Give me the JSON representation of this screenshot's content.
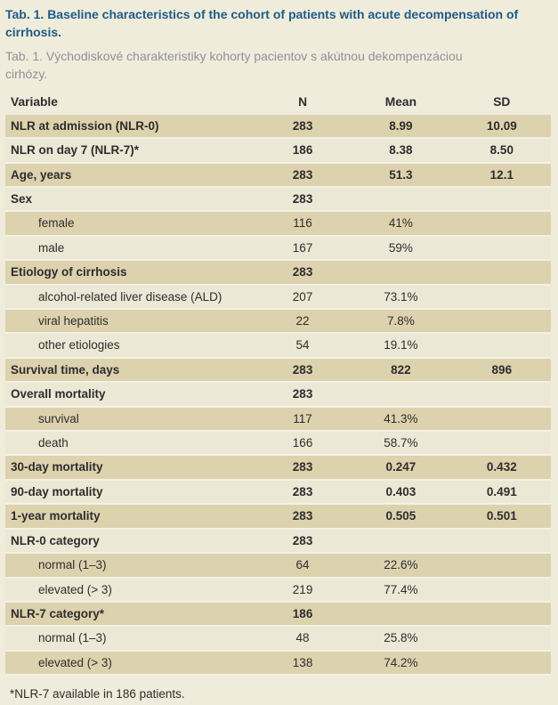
{
  "page": {
    "title_en": "Tab. 1. Baseline characteristics of the cohort of patients with acute decompensation of cirrhosis.",
    "title_sk": "Tab. 1. Východiskové charakteristiky kohorty pacientov s akútnou dekompenzáciou cirhózy.",
    "footnote": "*NLR-7 available in 186 patients."
  },
  "colors": {
    "title_blue": "#1e5b86",
    "subtitle_gray": "#909195",
    "page_background": "#f0ecdc",
    "row_dark": "#ddd2ae",
    "row_light": "#ebe8d5",
    "row_separator": "#f4f1e4",
    "text": "#2d2d2d"
  },
  "table": {
    "columns": [
      "Variable",
      "N",
      "Mean",
      "SD"
    ],
    "rows": [
      {
        "variable": "NLR at admission (NLR-0)",
        "n": "283",
        "mean": "8.99",
        "sd": "10.09",
        "bold": true,
        "indent": false
      },
      {
        "variable": "NLR on day 7 (NLR-7)*",
        "n": "186",
        "mean": "8.38",
        "sd": "8.50",
        "bold": true,
        "indent": false
      },
      {
        "variable": "Age, years",
        "n": "283",
        "mean": "51.3",
        "sd": "12.1",
        "bold": true,
        "indent": false
      },
      {
        "variable": "Sex",
        "n": "283",
        "mean": "",
        "sd": "",
        "bold": true,
        "indent": false
      },
      {
        "variable": "female",
        "n": "116",
        "mean": "41%",
        "sd": "",
        "bold": false,
        "indent": true
      },
      {
        "variable": "male",
        "n": "167",
        "mean": "59%",
        "sd": "",
        "bold": false,
        "indent": true
      },
      {
        "variable": "Etiology of cirrhosis",
        "n": "283",
        "mean": "",
        "sd": "",
        "bold": true,
        "indent": false
      },
      {
        "variable": "alcohol-related liver disease (ALD)",
        "n": "207",
        "mean": "73.1%",
        "sd": "",
        "bold": false,
        "indent": true
      },
      {
        "variable": "viral hepatitis",
        "n": "22",
        "mean": "7.8%",
        "sd": "",
        "bold": false,
        "indent": true
      },
      {
        "variable": "other etiologies",
        "n": "54",
        "mean": "19.1%",
        "sd": "",
        "bold": false,
        "indent": true
      },
      {
        "variable": "Survival time, days",
        "n": "283",
        "mean": "822",
        "sd": "896",
        "bold": true,
        "indent": false
      },
      {
        "variable": "Overall mortality",
        "n": "283",
        "mean": "",
        "sd": "",
        "bold": true,
        "indent": false
      },
      {
        "variable": "survival",
        "n": "117",
        "mean": "41.3%",
        "sd": "",
        "bold": false,
        "indent": true
      },
      {
        "variable": "death",
        "n": "166",
        "mean": "58.7%",
        "sd": "",
        "bold": false,
        "indent": true
      },
      {
        "variable": "30-day mortality",
        "n": "283",
        "mean": "0.247",
        "sd": "0.432",
        "bold": true,
        "indent": false
      },
      {
        "variable": "90-day mortality",
        "n": "283",
        "mean": "0.403",
        "sd": "0.491",
        "bold": true,
        "indent": false
      },
      {
        "variable": "1-year mortality",
        "n": "283",
        "mean": "0.505",
        "sd": "0.501",
        "bold": true,
        "indent": false
      },
      {
        "variable": "NLR-0 category",
        "n": "283",
        "mean": "",
        "sd": "",
        "bold": true,
        "indent": false
      },
      {
        "variable": "normal (1–3)",
        "n": "64",
        "mean": "22.6%",
        "sd": "",
        "bold": false,
        "indent": true
      },
      {
        "variable": "elevated (> 3)",
        "n": "219",
        "mean": "77.4%",
        "sd": "",
        "bold": false,
        "indent": true
      },
      {
        "variable": "NLR-7 category*",
        "n": "186",
        "mean": "",
        "sd": "",
        "bold": true,
        "indent": false
      },
      {
        "variable": "normal (1–3)",
        "n": "48",
        "mean": "25.8%",
        "sd": "",
        "bold": false,
        "indent": true
      },
      {
        "variable": "elevated (> 3)",
        "n": "138",
        "mean": "74.2%",
        "sd": "",
        "bold": false,
        "indent": true
      }
    ]
  }
}
